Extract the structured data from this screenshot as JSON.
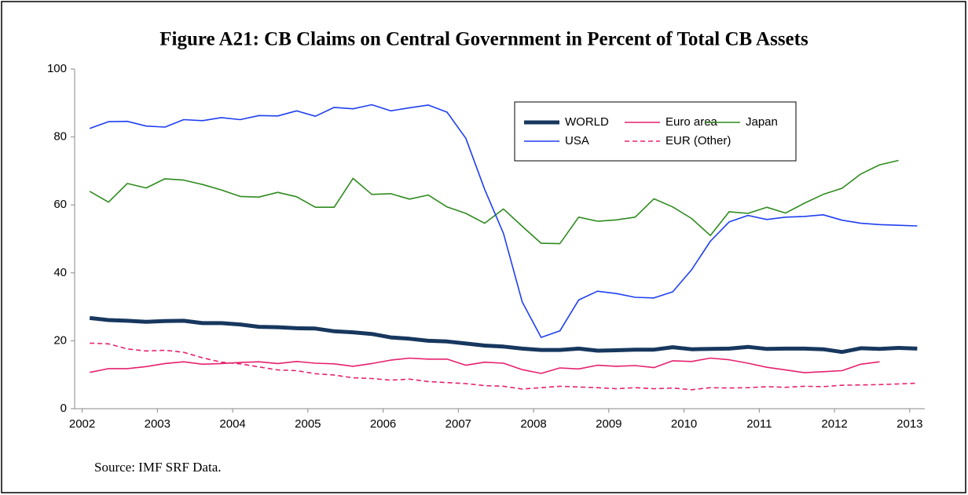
{
  "chart_data": {
    "type": "line",
    "title": "Figure A21: CB Claims on Central Government in Percent of Total CB Assets",
    "source": "Source: IMF SRF Data.",
    "x": [
      2002.1,
      2002.35,
      2002.6,
      2002.85,
      2003.1,
      2003.35,
      2003.6,
      2003.85,
      2004.1,
      2004.35,
      2004.6,
      2004.85,
      2005.1,
      2005.35,
      2005.6,
      2005.85,
      2006.1,
      2006.35,
      2006.6,
      2006.85,
      2007.1,
      2007.35,
      2007.6,
      2007.85,
      2008.1,
      2008.35,
      2008.6,
      2008.85,
      2009.1,
      2009.35,
      2009.6,
      2009.85,
      2010.1,
      2010.35,
      2010.6,
      2010.85,
      2011.1,
      2011.35,
      2011.6,
      2011.85,
      2012.1,
      2012.35,
      2012.6,
      2012.85,
      2013.1
    ],
    "xlim": [
      2001.9,
      2013.2
    ],
    "xticks": [
      2002,
      2003,
      2004,
      2005,
      2006,
      2007,
      2008,
      2009,
      2010,
      2011,
      2012,
      2013
    ],
    "ylim": [
      0,
      100
    ],
    "yticks": [
      0,
      20,
      40,
      60,
      80,
      100
    ],
    "grid": false,
    "legend": "top-right",
    "series": [
      {
        "name": "WORLD",
        "color": "#17375e",
        "line_width": 5,
        "line_style": "solid",
        "values": [
          26.7,
          26.1,
          25.9,
          25.6,
          25.8,
          25.9,
          25.2,
          25.2,
          24.8,
          24.1,
          24.0,
          23.7,
          23.6,
          22.8,
          22.5,
          22.0,
          21.0,
          20.6,
          20.0,
          19.8,
          19.2,
          18.6,
          18.3,
          17.7,
          17.3,
          17.3,
          17.7,
          17.1,
          17.2,
          17.4,
          17.4,
          18.1,
          17.5,
          17.6,
          17.7,
          18.2,
          17.6,
          17.7,
          17.7,
          17.5,
          16.7,
          17.8,
          17.6,
          17.9,
          17.7
        ]
      },
      {
        "name": "Euro area",
        "color": "#e6206e",
        "line_width": 1.6,
        "line_style": "solid",
        "values": [
          10.7,
          11.8,
          11.8,
          12.4,
          13.3,
          13.8,
          13.1,
          13.3,
          13.6,
          13.8,
          13.3,
          13.9,
          13.4,
          13.2,
          12.5,
          13.3,
          14.3,
          14.9,
          14.6,
          14.6,
          12.8,
          13.7,
          13.4,
          11.5,
          10.4,
          12.0,
          11.7,
          12.8,
          12.5,
          12.7,
          12.1,
          14.1,
          13.9,
          14.9,
          14.4,
          13.4,
          12.2,
          11.4,
          10.6,
          10.9,
          11.2,
          13.1,
          13.8,
          null,
          null
        ]
      },
      {
        "name": "Japan",
        "color": "#2e8b1e",
        "line_width": 1.6,
        "line_style": "solid",
        "values": [
          64.0,
          60.8,
          66.3,
          65.0,
          67.7,
          67.3,
          66.0,
          64.4,
          62.5,
          62.3,
          63.7,
          62.4,
          59.3,
          59.3,
          67.8,
          63.1,
          63.3,
          61.7,
          62.9,
          59.4,
          57.5,
          54.6,
          58.8,
          53.7,
          48.7,
          48.6,
          56.4,
          55.2,
          55.6,
          56.4,
          61.8,
          59.4,
          56.0,
          51.0,
          58.0,
          57.5,
          59.3,
          57.6,
          60.5,
          63.1,
          64.9,
          69.1,
          71.8,
          73.1,
          null
        ]
      },
      {
        "name": "USA",
        "color": "#1f3ff0",
        "line_width": 1.6,
        "line_style": "solid",
        "values": [
          82.5,
          84.5,
          84.6,
          83.2,
          82.9,
          85.1,
          84.8,
          85.7,
          85.1,
          86.3,
          86.2,
          87.7,
          86.1,
          88.7,
          88.3,
          89.5,
          87.7,
          88.6,
          89.4,
          87.3,
          79.6,
          64.6,
          51.6,
          31.4,
          21.0,
          22.9,
          32.0,
          34.6,
          33.9,
          32.8,
          32.6,
          34.4,
          40.9,
          49.3,
          55.0,
          56.9,
          55.7,
          56.4,
          56.6,
          57.1,
          55.5,
          54.6,
          54.2,
          54.0,
          53.8
        ]
      },
      {
        "name": "EUR (Other)",
        "color": "#e6206e",
        "line_width": 1.6,
        "line_style": "dashed",
        "values": [
          19.3,
          19.1,
          17.6,
          17.0,
          17.2,
          16.6,
          15.0,
          13.7,
          13.2,
          12.3,
          11.4,
          11.2,
          10.3,
          9.9,
          9.1,
          8.9,
          8.4,
          8.7,
          8.0,
          7.7,
          7.4,
          6.8,
          6.6,
          5.8,
          6.2,
          6.6,
          6.4,
          6.2,
          5.9,
          6.2,
          5.9,
          6.1,
          5.6,
          6.2,
          6.1,
          6.2,
          6.5,
          6.3,
          6.6,
          6.5,
          6.9,
          7.0,
          7.1,
          7.3,
          7.5
        ]
      }
    ]
  }
}
